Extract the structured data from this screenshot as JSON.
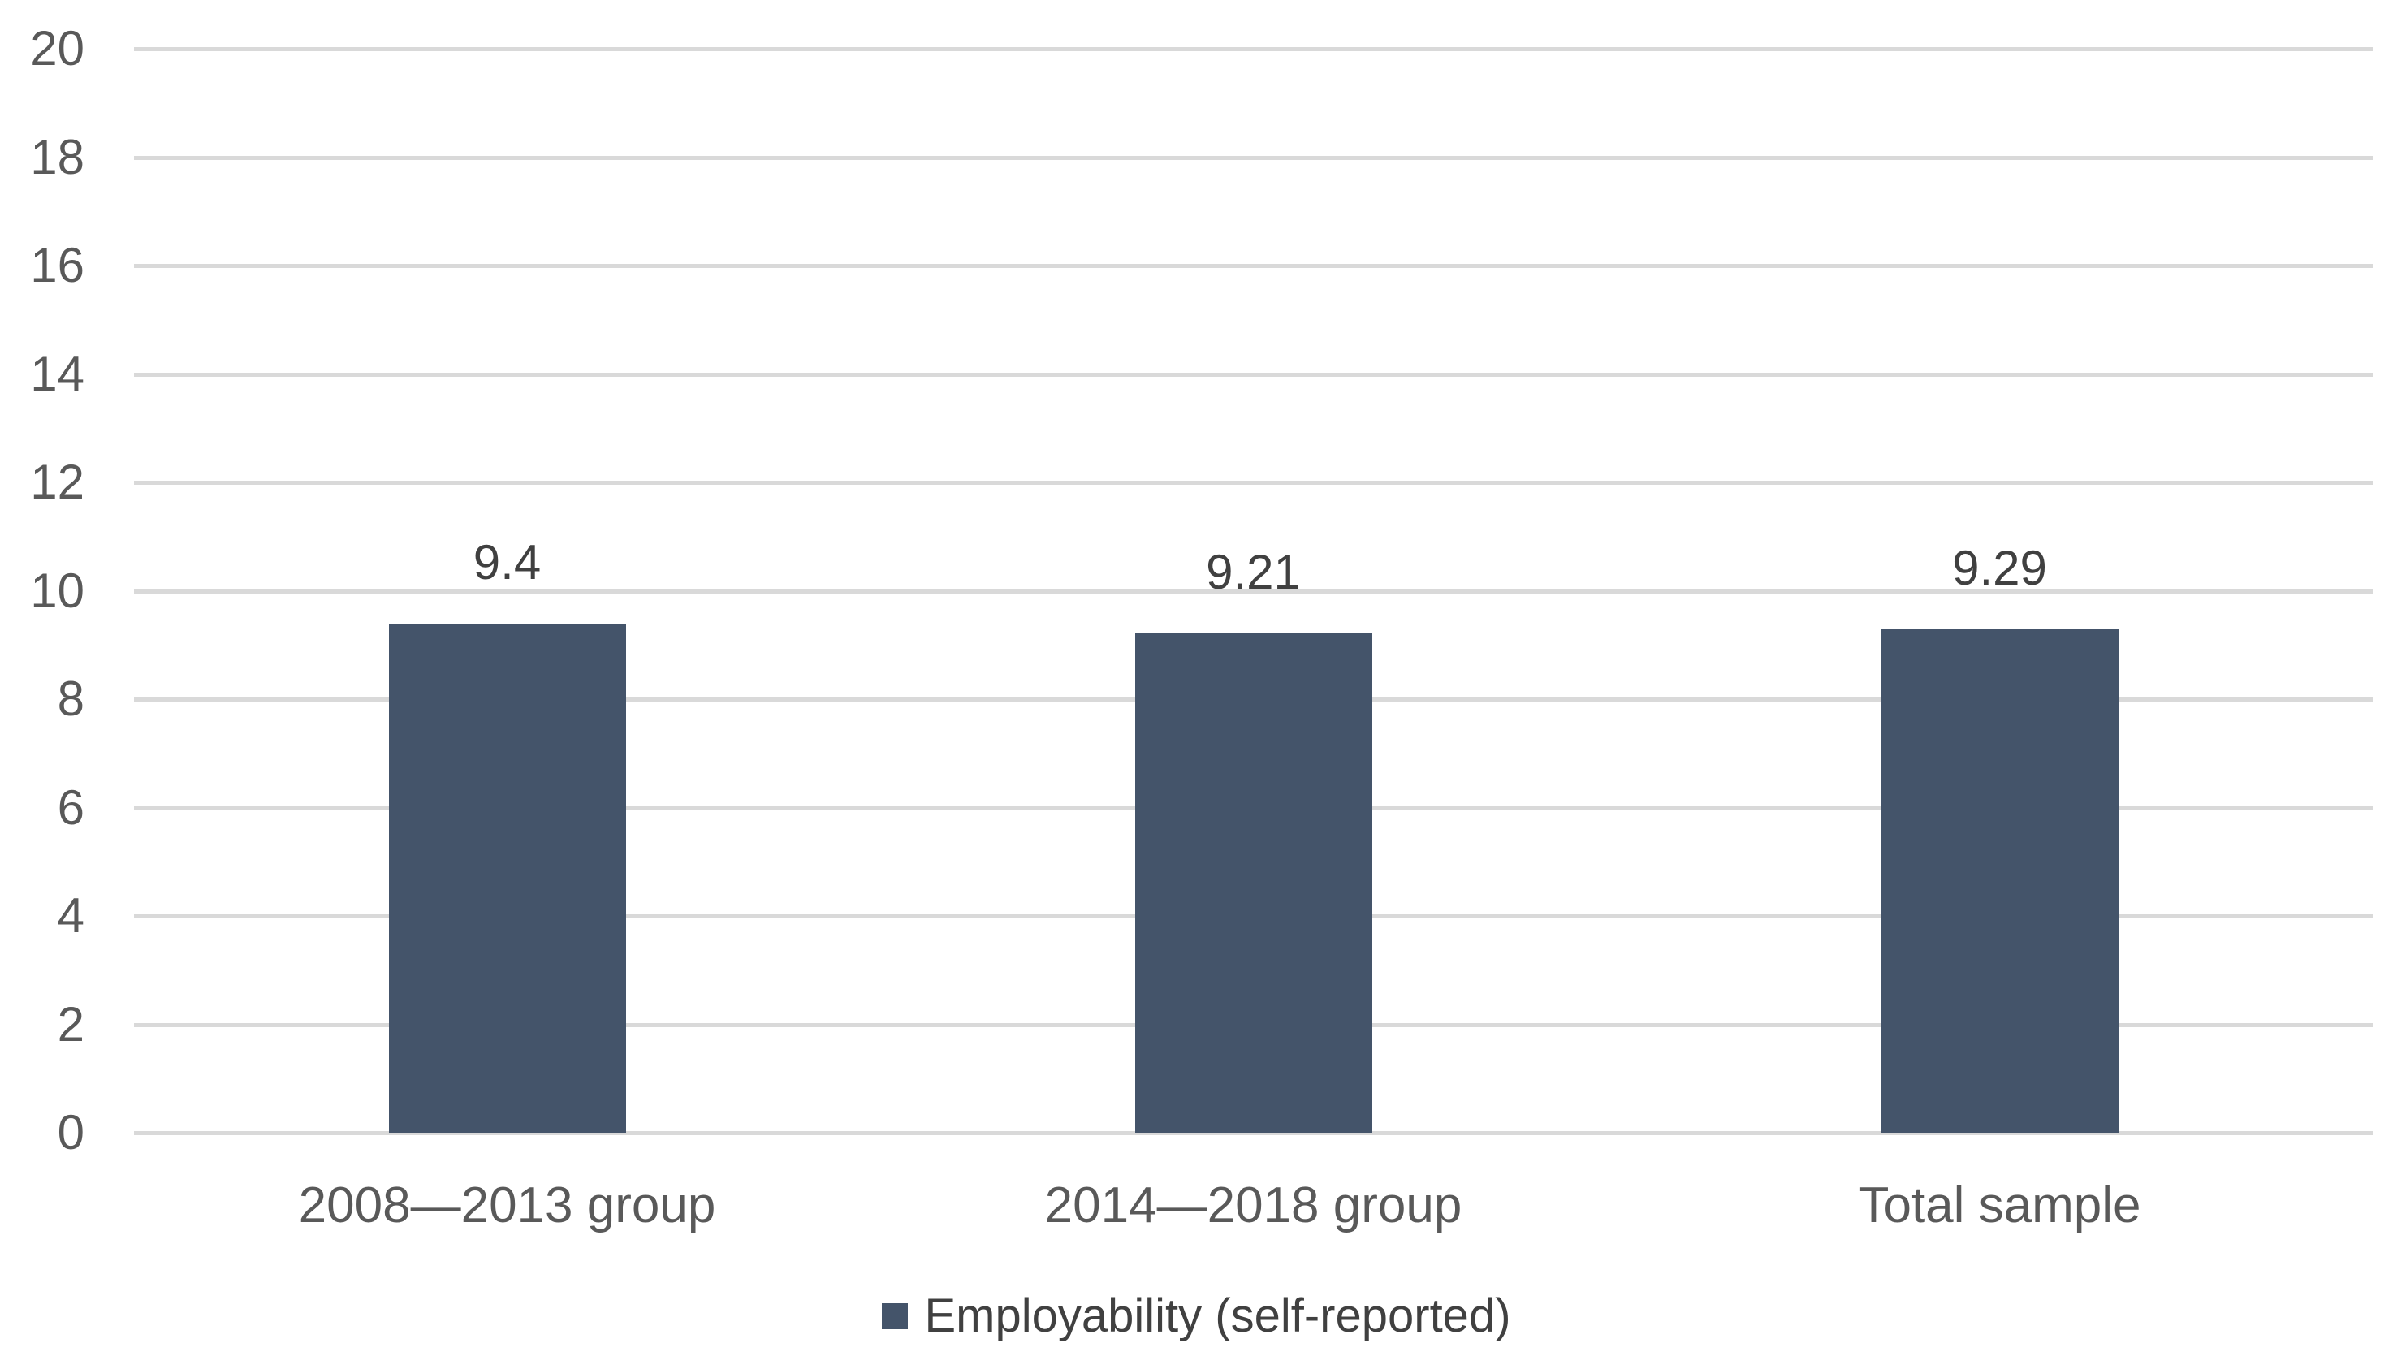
{
  "chart_data": {
    "type": "bar",
    "title": "",
    "categories": [
      "2008—2013 group",
      "2014—2018 group",
      "Total sample"
    ],
    "series": [
      {
        "name": "Employability (self-reported)",
        "values": [
          9.4,
          9.21,
          9.29
        ],
        "value_labels": [
          "9.4",
          "9.21",
          "9.29"
        ]
      }
    ],
    "xlabel": "",
    "ylabel": "",
    "ylim": [
      0,
      20
    ],
    "ytick_step": 2,
    "ytick_labels": [
      "0",
      "2",
      "4",
      "6",
      "8",
      "10",
      "12",
      "14",
      "16",
      "18",
      "20"
    ],
    "grid": "horizontal-only",
    "legend_position": "bottom-center",
    "legend": {
      "swatch": "square",
      "label": "Employability (self-reported)"
    }
  },
  "colors": {
    "bar": "#44546a",
    "gridline": "#d9d9d9",
    "axis_text": "#595959",
    "label_text": "#404040",
    "background": "#ffffff"
  }
}
